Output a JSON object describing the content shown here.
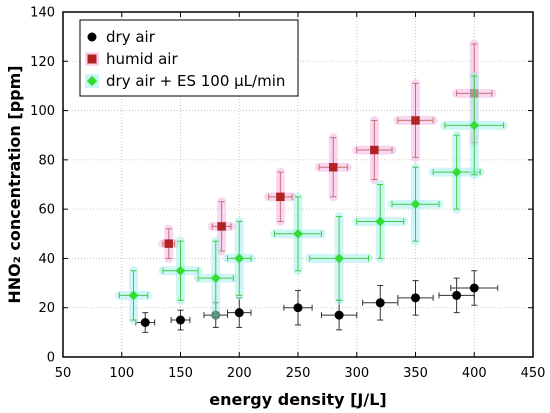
{
  "chart_data": {
    "type": "scatter",
    "xlabel": "energy density [J/L]",
    "ylabel": "HNO₂ concentration [ppm]",
    "xlim": [
      50,
      450
    ],
    "ylim": [
      0,
      140
    ],
    "xticks": [
      50,
      100,
      150,
      200,
      250,
      300,
      350,
      400,
      450
    ],
    "yticks": [
      0,
      20,
      40,
      60,
      80,
      100,
      120,
      140
    ],
    "grid": true,
    "legend_position": "top-left",
    "series": [
      {
        "name": "dry air",
        "marker": "circle",
        "color": "#000000",
        "error_color": "#333333",
        "glow": "none",
        "points": [
          {
            "x": 120,
            "y": 14,
            "xerr": 8,
            "yerr": 4
          },
          {
            "x": 150,
            "y": 15,
            "xerr": 8,
            "yerr": 4
          },
          {
            "x": 180,
            "y": 17,
            "xerr": 10,
            "yerr": 5
          },
          {
            "x": 200,
            "y": 18,
            "xerr": 10,
            "yerr": 6
          },
          {
            "x": 250,
            "y": 20,
            "xerr": 12,
            "yerr": 7
          },
          {
            "x": 285,
            "y": 17,
            "xerr": 15,
            "yerr": 6
          },
          {
            "x": 320,
            "y": 22,
            "xerr": 15,
            "yerr": 7
          },
          {
            "x": 350,
            "y": 24,
            "xerr": 15,
            "yerr": 7
          },
          {
            "x": 385,
            "y": 25,
            "xerr": 15,
            "yerr": 7
          },
          {
            "x": 400,
            "y": 28,
            "xerr": 20,
            "yerr": 7
          }
        ]
      },
      {
        "name": "humid air",
        "marker": "square",
        "color": "#b22222",
        "error_color": "#c87070",
        "glow": "#f4b8e6",
        "points": [
          {
            "x": 140,
            "y": 46,
            "xerr": 5,
            "yerr": 6
          },
          {
            "x": 185,
            "y": 53,
            "xerr": 8,
            "yerr": 10
          },
          {
            "x": 235,
            "y": 65,
            "xerr": 10,
            "yerr": 10
          },
          {
            "x": 280,
            "y": 77,
            "xerr": 12,
            "yerr": 12
          },
          {
            "x": 315,
            "y": 84,
            "xerr": 15,
            "yerr": 12
          },
          {
            "x": 350,
            "y": 96,
            "xerr": 15,
            "yerr": 15
          },
          {
            "x": 400,
            "y": 107,
            "xerr": 15,
            "yerr": 20
          }
        ]
      },
      {
        "name": "dry air + ES 100 µL/min",
        "marker": "diamond",
        "color": "#33dd33",
        "error_color": "#44cc44",
        "glow": "#a8f0f0",
        "points": [
          {
            "x": 110,
            "y": 25,
            "xerr": 12,
            "yerr": 10
          },
          {
            "x": 150,
            "y": 35,
            "xerr": 15,
            "yerr": 12
          },
          {
            "x": 180,
            "y": 32,
            "xerr": 15,
            "yerr": 15
          },
          {
            "x": 200,
            "y": 40,
            "xerr": 10,
            "yerr": 15
          },
          {
            "x": 250,
            "y": 50,
            "xerr": 20,
            "yerr": 15
          },
          {
            "x": 285,
            "y": 40,
            "xerr": 25,
            "yerr": 17
          },
          {
            "x": 320,
            "y": 55,
            "xerr": 20,
            "yerr": 15
          },
          {
            "x": 350,
            "y": 62,
            "xerr": 20,
            "yerr": 15
          },
          {
            "x": 385,
            "y": 75,
            "xerr": 20,
            "yerr": 15
          },
          {
            "x": 400,
            "y": 94,
            "xerr": 25,
            "yerr": 20
          }
        ]
      }
    ]
  }
}
